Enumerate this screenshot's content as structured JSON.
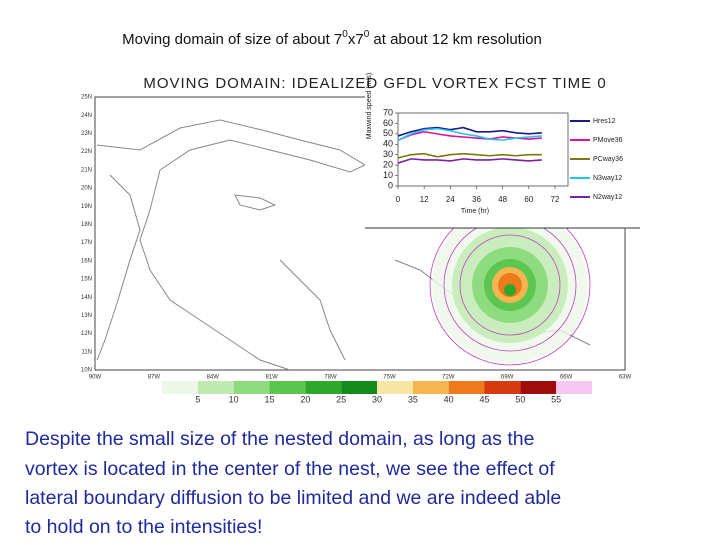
{
  "header": {
    "parts": [
      "Moving domain of size of about  7",
      "0",
      "x7",
      "0",
      "  at  about 12 km resolution"
    ]
  },
  "figure": {
    "title": "MOVING DOMAIN: IDEALIZED GFDL VORTEX FCST TIME 0",
    "lat_labels": [
      "25N",
      "24N",
      "23N",
      "22N",
      "21N",
      "20N",
      "19N",
      "18N",
      "17N",
      "16N",
      "15N",
      "14N",
      "13N",
      "12N",
      "11N",
      "10N"
    ],
    "lon_labels": [
      "90W",
      "87W",
      "84W",
      "81W",
      "78W",
      "75W",
      "72W",
      "69W",
      "66W",
      "63W"
    ],
    "colorbar": {
      "colors": [
        "#eef8ea",
        "#bfeab0",
        "#8fdc80",
        "#5cc650",
        "#2ea82a",
        "#138a1a",
        "#f6e7a6",
        "#f5b650",
        "#ee7a1e",
        "#d83a10",
        "#a00c0c",
        "#f4c8f0"
      ],
      "labels": [
        "5",
        "10",
        "15",
        "20",
        "25",
        "30",
        "35",
        "40",
        "45",
        "50",
        "55"
      ]
    }
  },
  "chart_data": {
    "type": "line",
    "xlabel": "Time (hr)",
    "ylabel": "Maxwind speed (m/s)",
    "x": [
      0,
      6,
      12,
      18,
      24,
      30,
      36,
      42,
      48,
      54,
      60,
      66
    ],
    "xlim": [
      0,
      78
    ],
    "xticks": [
      0,
      12,
      24,
      36,
      48,
      60,
      72
    ],
    "ylim": [
      0,
      70
    ],
    "yticks": [
      0,
      10,
      20,
      30,
      40,
      50,
      60,
      70
    ],
    "series": [
      {
        "name": "Hres12",
        "color": "#1a1a8c",
        "values": [
          48,
          52,
          55,
          56,
          54,
          56,
          52,
          52,
          53,
          51,
          50,
          51
        ]
      },
      {
        "name": "PMove36",
        "color": "#e0109a",
        "values": [
          44,
          49,
          52,
          50,
          48,
          47,
          46,
          45,
          47,
          46,
          45,
          46
        ]
      },
      {
        "name": "PCway36",
        "color": "#7a7a10",
        "values": [
          27,
          30,
          31,
          28,
          30,
          31,
          30,
          29,
          30,
          29,
          30,
          30
        ]
      },
      {
        "name": "N3way12",
        "color": "#20c8e8",
        "values": [
          44,
          50,
          54,
          55,
          53,
          50,
          48,
          45,
          44,
          46,
          47,
          48
        ]
      },
      {
        "name": "N2way12",
        "color": "#8020a0",
        "values": [
          22,
          26,
          25,
          25,
          24,
          26,
          25,
          25,
          26,
          25,
          24,
          25
        ]
      }
    ]
  },
  "body": {
    "lines": [
      "Despite the small size of the nested domain, as long as the",
      "vortex is located in the center of the nest, we see the effect of",
      "lateral boundary diffusion to be limited and we are indeed able",
      "to hold on to the intensities!"
    ]
  }
}
